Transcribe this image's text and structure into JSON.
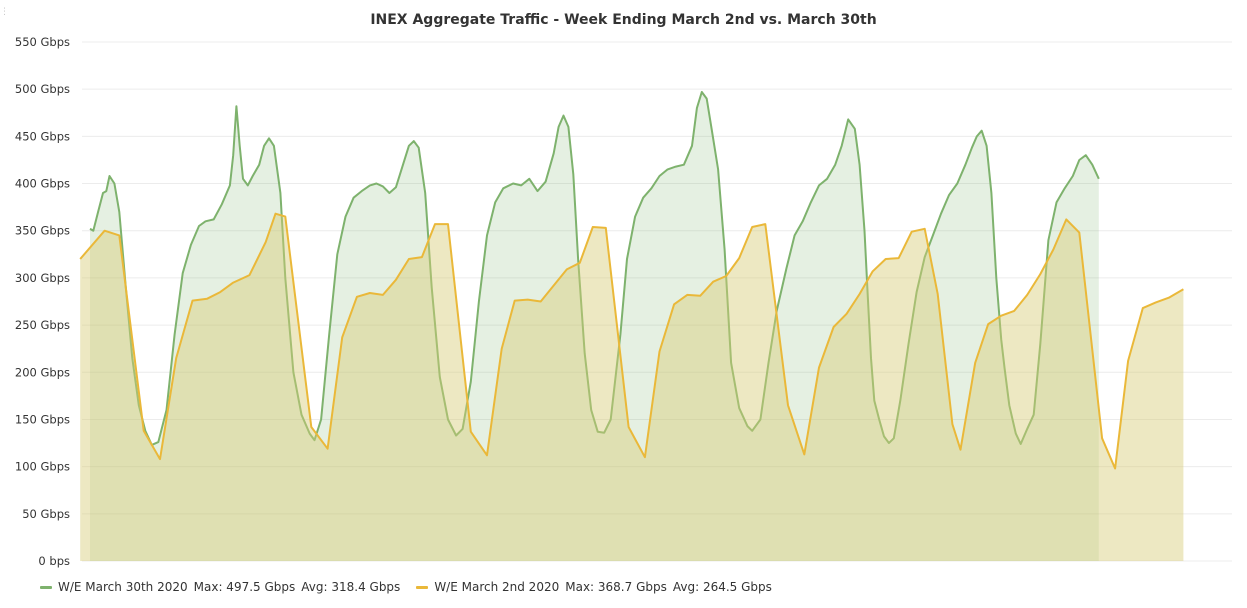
{
  "panel": {
    "title": "INEX Aggregate Traffic - Week Ending March 2nd vs. March 30th"
  },
  "legend": {
    "items": [
      {
        "name": "W/E March 30th 2020",
        "max": "Max: 497.5 Gbps",
        "avg": "Avg: 318.4 Gbps",
        "color": "#7eb26d"
      },
      {
        "name": "W/E March 2nd 2020",
        "max": "Max: 368.7 Gbps",
        "avg": "Avg: 264.5 Gbps",
        "color": "#eab839"
      }
    ]
  },
  "chart_data": {
    "type": "area",
    "title": "INEX Aggregate Traffic - Week Ending March 2nd vs. March 30th",
    "ylim": [
      0,
      550
    ],
    "yticks": [
      0,
      50,
      100,
      150,
      200,
      250,
      300,
      350,
      400,
      450,
      500,
      550
    ],
    "ytick_labels": [
      "0 bps",
      "50 Gbps",
      "100 Gbps",
      "150 Gbps",
      "200 Gbps",
      "250 Gbps",
      "300 Gbps",
      "350 Gbps",
      "400 Gbps",
      "450 Gbps",
      "500 Gbps",
      "550 Gbps"
    ],
    "xlim": [
      0,
      7
    ],
    "x_unit": "days into week",
    "grid": true,
    "legend_position": "bottom",
    "series": [
      {
        "name": "W/E March 30th 2020",
        "color": "#7eb26d",
        "points": [
          [
            0.0,
            352
          ],
          [
            0.02,
            350
          ],
          [
            0.05,
            370
          ],
          [
            0.08,
            390
          ],
          [
            0.1,
            392
          ],
          [
            0.12,
            408
          ],
          [
            0.15,
            400
          ],
          [
            0.18,
            370
          ],
          [
            0.22,
            290
          ],
          [
            0.26,
            215
          ],
          [
            0.3,
            165
          ],
          [
            0.34,
            138
          ],
          [
            0.38,
            123
          ],
          [
            0.42,
            126
          ],
          [
            0.47,
            160
          ],
          [
            0.52,
            240
          ],
          [
            0.57,
            305
          ],
          [
            0.62,
            335
          ],
          [
            0.67,
            355
          ],
          [
            0.71,
            360
          ],
          [
            0.76,
            362
          ],
          [
            0.81,
            378
          ],
          [
            0.86,
            398
          ],
          [
            0.88,
            430
          ],
          [
            0.9,
            482
          ],
          [
            0.92,
            440
          ],
          [
            0.94,
            405
          ],
          [
            0.97,
            398
          ],
          [
            1.0,
            408
          ],
          [
            1.04,
            420
          ],
          [
            1.07,
            440
          ],
          [
            1.1,
            448
          ],
          [
            1.13,
            440
          ],
          [
            1.17,
            390
          ],
          [
            1.2,
            300
          ],
          [
            1.25,
            200
          ],
          [
            1.3,
            155
          ],
          [
            1.35,
            135
          ],
          [
            1.38,
            128
          ],
          [
            1.42,
            150
          ],
          [
            1.47,
            240
          ],
          [
            1.52,
            325
          ],
          [
            1.57,
            365
          ],
          [
            1.62,
            385
          ],
          [
            1.67,
            392
          ],
          [
            1.72,
            398
          ],
          [
            1.76,
            400
          ],
          [
            1.8,
            397
          ],
          [
            1.84,
            390
          ],
          [
            1.88,
            396
          ],
          [
            1.92,
            418
          ],
          [
            1.96,
            440
          ],
          [
            1.99,
            445
          ],
          [
            2.02,
            438
          ],
          [
            2.06,
            390
          ],
          [
            2.1,
            290
          ],
          [
            2.15,
            195
          ],
          [
            2.2,
            150
          ],
          [
            2.25,
            133
          ],
          [
            2.29,
            140
          ],
          [
            2.34,
            190
          ],
          [
            2.39,
            275
          ],
          [
            2.44,
            345
          ],
          [
            2.49,
            380
          ],
          [
            2.54,
            395
          ],
          [
            2.6,
            400
          ],
          [
            2.65,
            398
          ],
          [
            2.7,
            405
          ],
          [
            2.75,
            392
          ],
          [
            2.8,
            402
          ],
          [
            2.85,
            432
          ],
          [
            2.88,
            460
          ],
          [
            2.91,
            472
          ],
          [
            2.94,
            460
          ],
          [
            2.97,
            410
          ],
          [
            3.0,
            320
          ],
          [
            3.04,
            220
          ],
          [
            3.08,
            160
          ],
          [
            3.12,
            137
          ],
          [
            3.16,
            136
          ],
          [
            3.2,
            150
          ],
          [
            3.26,
            240
          ],
          [
            3.3,
            320
          ],
          [
            3.35,
            365
          ],
          [
            3.4,
            385
          ],
          [
            3.45,
            395
          ],
          [
            3.5,
            408
          ],
          [
            3.55,
            415
          ],
          [
            3.6,
            418
          ],
          [
            3.65,
            420
          ],
          [
            3.7,
            440
          ],
          [
            3.73,
            480
          ],
          [
            3.76,
            497
          ],
          [
            3.79,
            490
          ],
          [
            3.82,
            458
          ],
          [
            3.86,
            415
          ],
          [
            3.9,
            330
          ],
          [
            3.94,
            210
          ],
          [
            3.99,
            162
          ],
          [
            4.04,
            143
          ],
          [
            4.07,
            138
          ],
          [
            4.12,
            150
          ],
          [
            4.17,
            210
          ],
          [
            4.22,
            265
          ],
          [
            4.28,
            310
          ],
          [
            4.33,
            345
          ],
          [
            4.38,
            360
          ],
          [
            4.43,
            380
          ],
          [
            4.48,
            398
          ],
          [
            4.53,
            405
          ],
          [
            4.58,
            420
          ],
          [
            4.62,
            440
          ],
          [
            4.66,
            468
          ],
          [
            4.7,
            458
          ],
          [
            4.73,
            420
          ],
          [
            4.76,
            350
          ],
          [
            4.78,
            280
          ],
          [
            4.8,
            215
          ],
          [
            4.82,
            170
          ],
          [
            4.85,
            150
          ],
          [
            4.88,
            132
          ],
          [
            4.91,
            125
          ],
          [
            4.94,
            130
          ],
          [
            4.98,
            170
          ],
          [
            5.03,
            230
          ],
          [
            5.08,
            285
          ],
          [
            5.13,
            322
          ],
          [
            5.18,
            345
          ],
          [
            5.23,
            368
          ],
          [
            5.28,
            388
          ],
          [
            5.33,
            400
          ],
          [
            5.38,
            420
          ],
          [
            5.42,
            438
          ],
          [
            5.45,
            450
          ],
          [
            5.48,
            456
          ],
          [
            5.51,
            440
          ],
          [
            5.54,
            390
          ],
          [
            5.57,
            300
          ],
          [
            5.6,
            235
          ],
          [
            5.62,
            205
          ],
          [
            5.65,
            165
          ],
          [
            5.69,
            135
          ],
          [
            5.72,
            124
          ],
          [
            5.76,
            140
          ],
          [
            5.8,
            155
          ],
          [
            5.84,
            230
          ],
          [
            5.89,
            340
          ],
          [
            5.94,
            380
          ],
          [
            5.99,
            395
          ],
          [
            6.04,
            408
          ],
          [
            6.08,
            425
          ],
          [
            6.12,
            430
          ],
          [
            6.16,
            420
          ],
          [
            6.2,
            405
          ]
        ]
      },
      {
        "name": "W/E March 2nd 2020",
        "color": "#eab839",
        "points": [
          [
            -0.06,
            320
          ],
          [
            0.09,
            350
          ],
          [
            0.18,
            345
          ],
          [
            0.33,
            138
          ],
          [
            0.43,
            108
          ],
          [
            0.53,
            215
          ],
          [
            0.63,
            276
          ],
          [
            0.72,
            278
          ],
          [
            0.8,
            285
          ],
          [
            0.88,
            295
          ],
          [
            0.98,
            303
          ],
          [
            1.08,
            338
          ],
          [
            1.14,
            368
          ],
          [
            1.2,
            365
          ],
          [
            1.36,
            142
          ],
          [
            1.46,
            119
          ],
          [
            1.55,
            237
          ],
          [
            1.64,
            280
          ],
          [
            1.72,
            284
          ],
          [
            1.8,
            282
          ],
          [
            1.88,
            298
          ],
          [
            1.96,
            320
          ],
          [
            2.04,
            322
          ],
          [
            2.12,
            357
          ],
          [
            2.2,
            357
          ],
          [
            2.34,
            137
          ],
          [
            2.44,
            112
          ],
          [
            2.53,
            225
          ],
          [
            2.61,
            276
          ],
          [
            2.69,
            277
          ],
          [
            2.77,
            275
          ],
          [
            2.85,
            292
          ],
          [
            2.93,
            309
          ],
          [
            3.01,
            316
          ],
          [
            3.09,
            354
          ],
          [
            3.17,
            353
          ],
          [
            3.31,
            142
          ],
          [
            3.41,
            110
          ],
          [
            3.5,
            222
          ],
          [
            3.59,
            272
          ],
          [
            3.67,
            282
          ],
          [
            3.75,
            281
          ],
          [
            3.83,
            296
          ],
          [
            3.91,
            302
          ],
          [
            3.99,
            321
          ],
          [
            4.07,
            354
          ],
          [
            4.15,
            357
          ],
          [
            4.29,
            165
          ],
          [
            4.39,
            113
          ],
          [
            4.48,
            205
          ],
          [
            4.57,
            248
          ],
          [
            4.65,
            262
          ],
          [
            4.73,
            283
          ],
          [
            4.81,
            307
          ],
          [
            4.89,
            320
          ],
          [
            4.97,
            321
          ],
          [
            5.05,
            349
          ],
          [
            5.13,
            352
          ],
          [
            5.21,
            283
          ],
          [
            5.3,
            145
          ],
          [
            5.35,
            118
          ],
          [
            5.44,
            210
          ],
          [
            5.52,
            251
          ],
          [
            5.6,
            260
          ],
          [
            5.68,
            265
          ],
          [
            5.76,
            282
          ],
          [
            5.84,
            304
          ],
          [
            5.92,
            330
          ],
          [
            6.0,
            362
          ],
          [
            6.08,
            348
          ],
          [
            6.22,
            130
          ],
          [
            6.3,
            98
          ],
          [
            6.38,
            212
          ],
          [
            6.47,
            268
          ],
          [
            6.55,
            274
          ],
          [
            6.63,
            279
          ],
          [
            6.72,
            288
          ]
        ]
      }
    ]
  }
}
